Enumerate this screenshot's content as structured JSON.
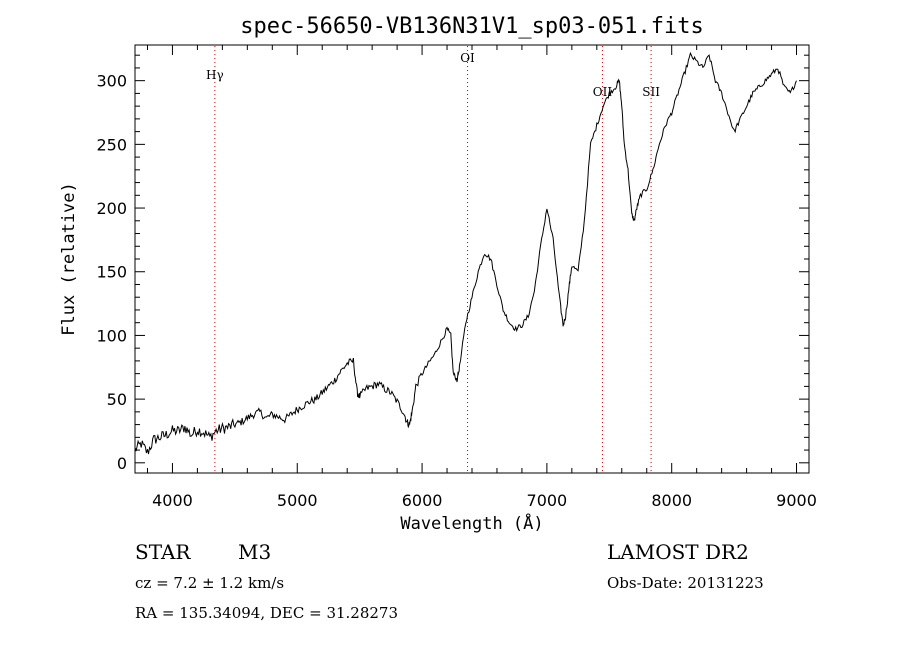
{
  "chart_data": {
    "type": "line",
    "title": "spec-56650-VB136N31V1_sp03-051.fits",
    "xlabel": "Wavelength (Å)",
    "ylabel": "Flux (relative)",
    "xlim": [
      3700,
      9100
    ],
    "ylim": [
      -8,
      328
    ],
    "x_ticks": [
      4000,
      5000,
      6000,
      7000,
      8000,
      9000
    ],
    "y_ticks": [
      0,
      50,
      100,
      150,
      200,
      250,
      300
    ],
    "x_tick_labels": [
      "4000",
      "5000",
      "6000",
      "7000",
      "8000",
      "9000"
    ],
    "y_tick_labels": [
      "0",
      "50",
      "100",
      "150",
      "200",
      "250",
      "300"
    ],
    "grid": false,
    "line_color": "#000000",
    "marker_color": "#cc0000",
    "line_markers": [
      {
        "label": "Hγ",
        "x": 4340
      },
      {
        "label": "OI",
        "x": 6364
      },
      {
        "label": "OII",
        "x": 7445
      },
      {
        "label": "SII",
        "x": 7835
      }
    ],
    "series": [
      {
        "x": [
          3700,
          3750,
          3800,
          3850,
          3900,
          3950,
          4000,
          4050,
          4100,
          4150,
          4200,
          4250,
          4300,
          4350,
          4400,
          4450,
          4500,
          4550,
          4600,
          4650,
          4700,
          4750,
          4800,
          4850,
          4900,
          4950,
          5000,
          5050,
          5100,
          5150,
          5200,
          5250,
          5300,
          5350,
          5400,
          5450,
          5480,
          5500,
          5550,
          5600,
          5650,
          5700,
          5750,
          5800,
          5850,
          5880,
          5900,
          5920,
          5950,
          6000,
          6050,
          6100,
          6150,
          6200,
          6230,
          6250,
          6280,
          6300,
          6350,
          6400,
          6450,
          6500,
          6550,
          6600,
          6650,
          6700,
          6750,
          6800,
          6850,
          6900,
          6950,
          7000,
          7050,
          7100,
          7130,
          7150,
          7180,
          7200,
          7250,
          7300,
          7350,
          7400,
          7450,
          7500,
          7550,
          7580,
          7600,
          7620,
          7650,
          7680,
          7700,
          7720,
          7750,
          7800,
          7850,
          7900,
          7950,
          8000,
          8050,
          8100,
          8150,
          8200,
          8250,
          8300,
          8350,
          8400,
          8450,
          8500,
          8550,
          8600,
          8650,
          8700,
          8750,
          8800,
          8850,
          8900,
          8950,
          9000
        ],
        "values": [
          10,
          15,
          8,
          18,
          20,
          22,
          25,
          25,
          28,
          22,
          26,
          24,
          20,
          25,
          27,
          28,
          30,
          32,
          35,
          38,
          40,
          35,
          38,
          36,
          34,
          38,
          42,
          45,
          48,
          50,
          55,
          60,
          65,
          72,
          78,
          80,
          55,
          52,
          58,
          60,
          62,
          58,
          55,
          48,
          40,
          32,
          30,
          40,
          60,
          70,
          78,
          85,
          95,
          105,
          100,
          70,
          65,
          75,
          110,
          130,
          150,
          165,
          160,
          140,
          120,
          110,
          105,
          108,
          115,
          135,
          170,
          200,
          175,
          130,
          108,
          115,
          140,
          155,
          150,
          190,
          250,
          265,
          280,
          290,
          295,
          300,
          280,
          250,
          230,
          195,
          190,
          200,
          210,
          215,
          230,
          250,
          265,
          275,
          290,
          305,
          320,
          315,
          310,
          320,
          300,
          290,
          275,
          260,
          270,
          280,
          290,
          295,
          300,
          305,
          310,
          295,
          290,
          300
        ]
      }
    ]
  },
  "footer": {
    "object_type": "STAR",
    "subclass": "M3",
    "survey": "LAMOST DR2",
    "cz": "cz = 7.2 ± 1.2 km/s",
    "obs_date": "Obs-Date: 20131223",
    "ra_dec": "RA = 135.34094, DEC =  31.28273"
  }
}
